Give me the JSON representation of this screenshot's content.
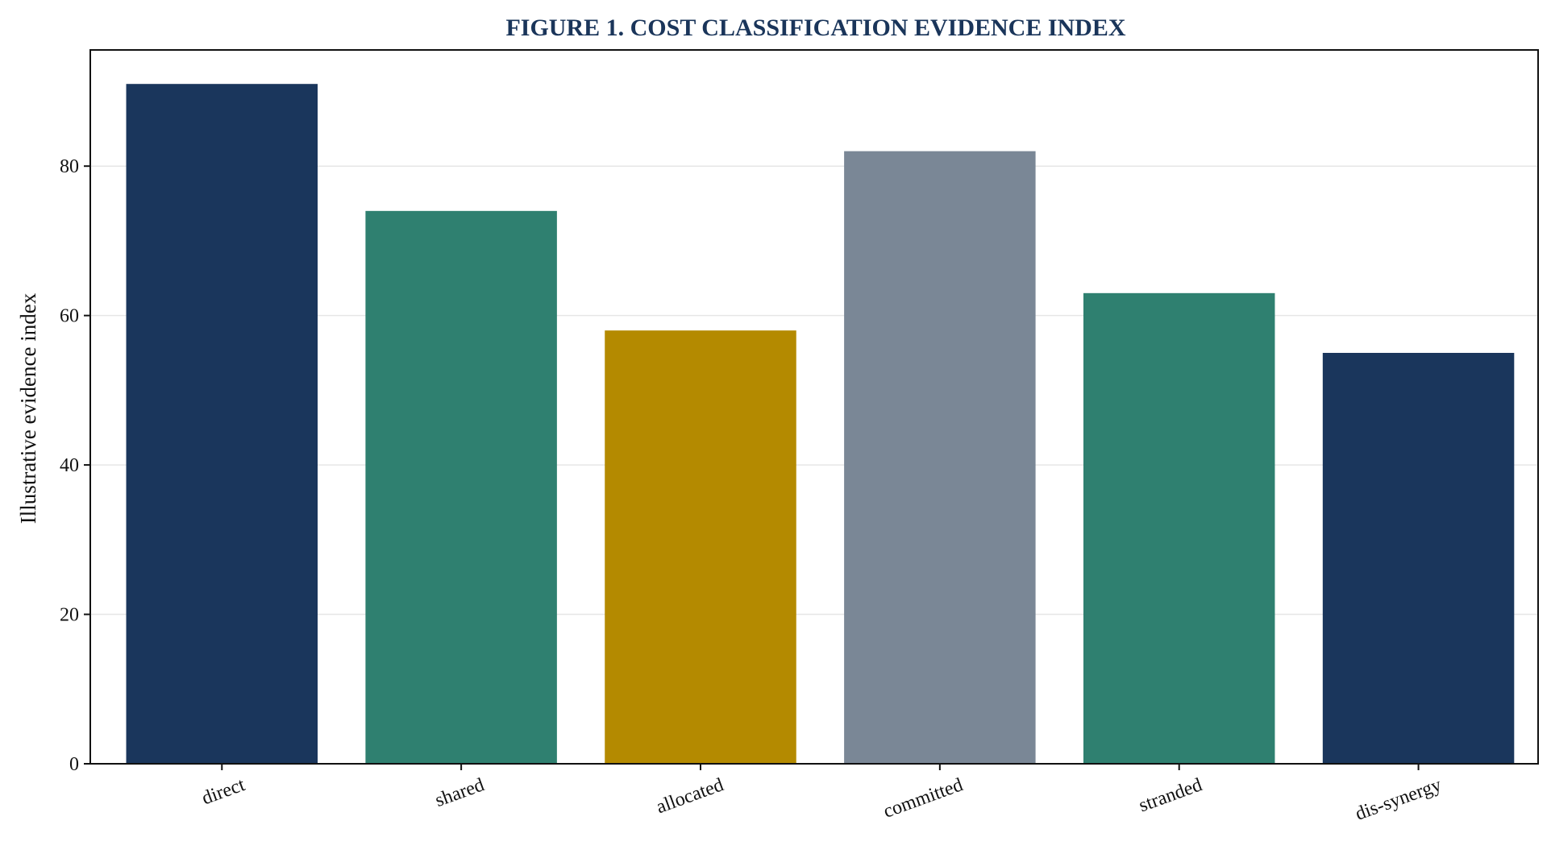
{
  "chart_data": {
    "type": "bar",
    "title": "FIGURE 1. COST CLASSIFICATION EVIDENCE INDEX",
    "xlabel": "",
    "ylabel": "Illustrative evidence index",
    "categories": [
      "direct",
      "shared",
      "allocated",
      "committed",
      "stranded",
      "dis-synergy"
    ],
    "values": [
      91,
      74,
      58,
      82,
      63,
      55
    ],
    "colors": [
      "#1a365c",
      "#2f8070",
      "#b48a00",
      "#7a8796",
      "#2f8070",
      "#1a365c"
    ],
    "ylim": [
      0,
      95.55
    ],
    "yticks": [
      0,
      20,
      40,
      60,
      80
    ],
    "grid": "horizontal",
    "legend": "none"
  },
  "style": {
    "title_color": "#1a355a",
    "grid_color": "#e6e6e6",
    "axis_color": "#111111"
  }
}
